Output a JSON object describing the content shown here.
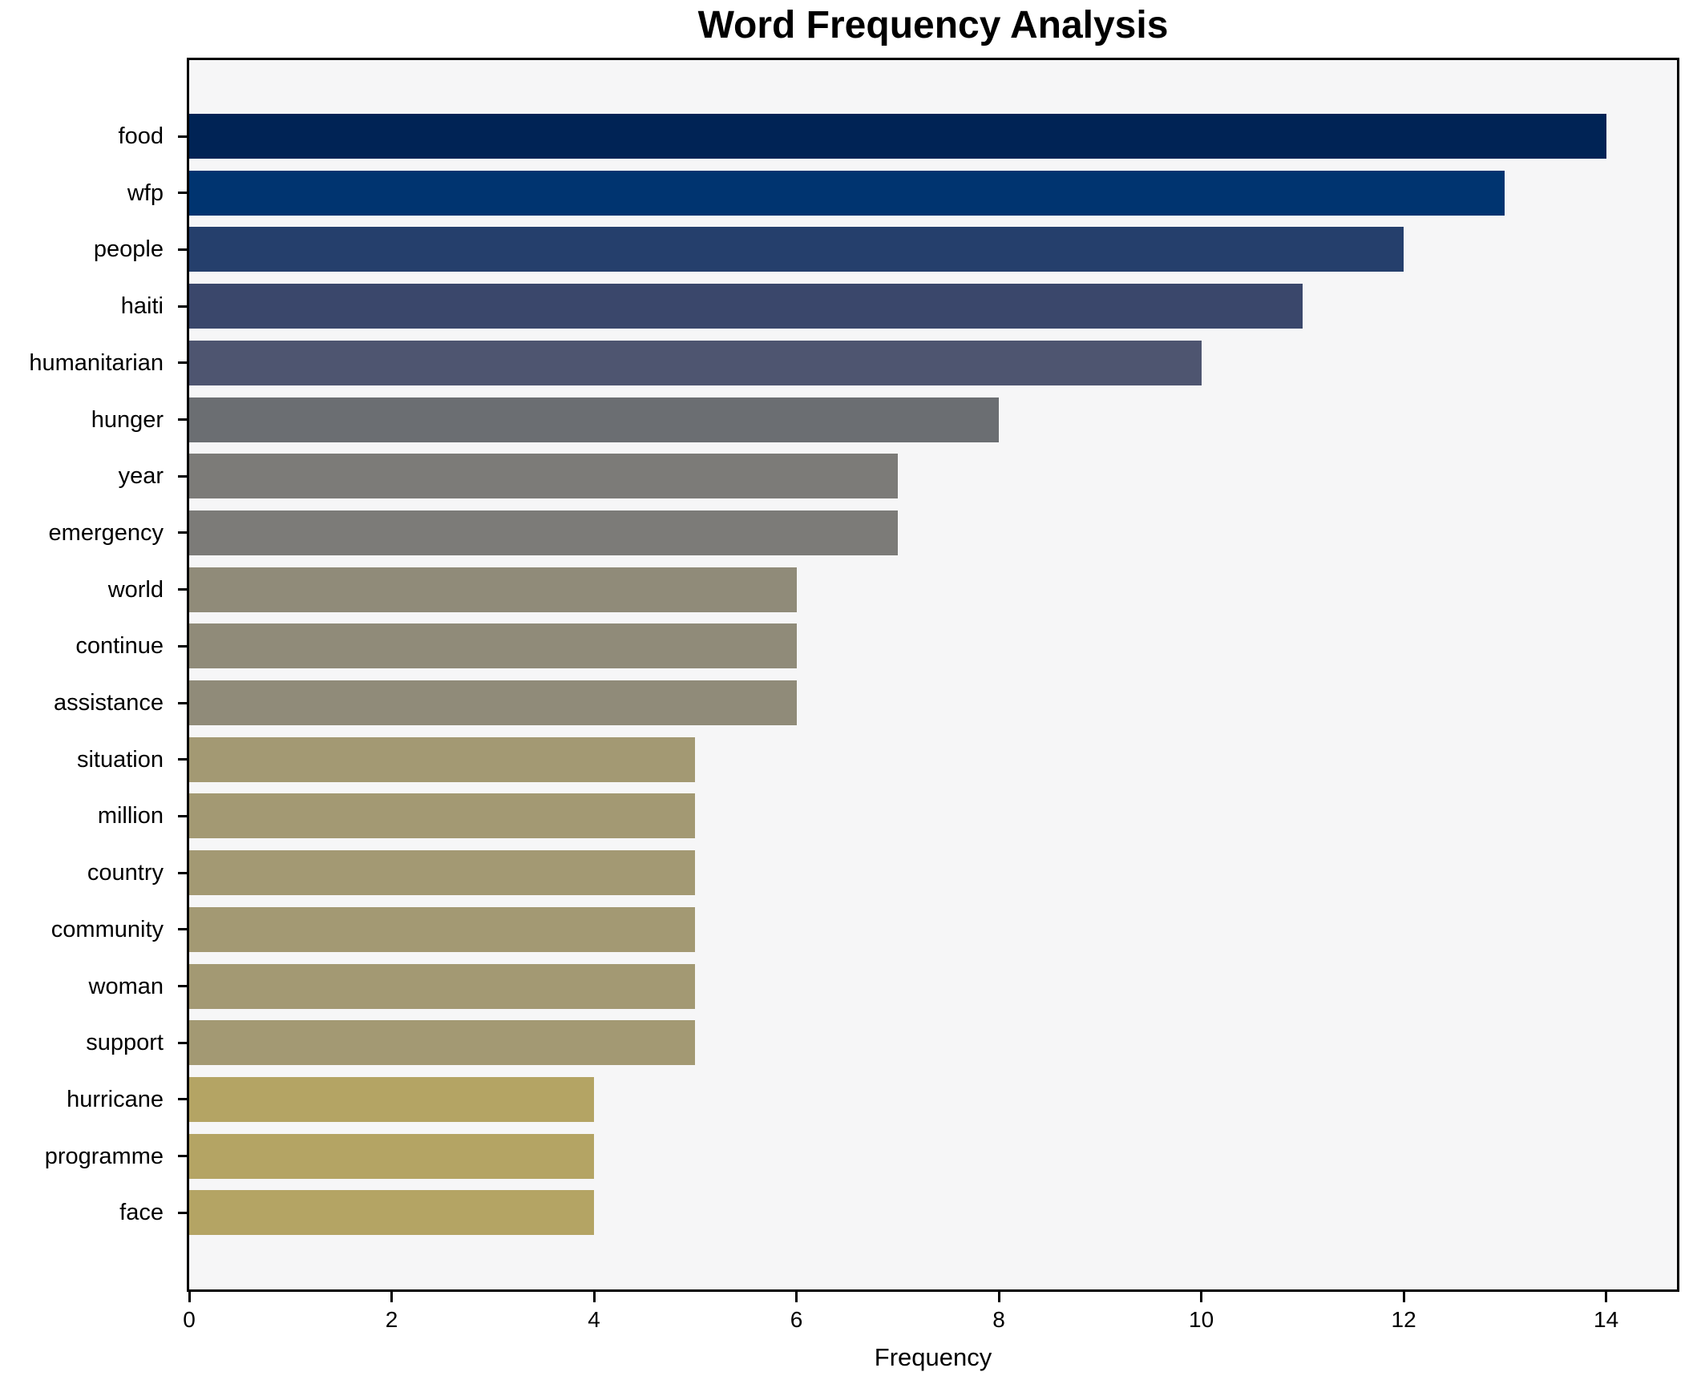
{
  "chart_data": {
    "type": "bar",
    "orientation": "horizontal",
    "title": "Word Frequency Analysis",
    "xlabel": "Frequency",
    "ylabel": "",
    "categories": [
      "food",
      "wfp",
      "people",
      "haiti",
      "humanitarian",
      "hunger",
      "year",
      "emergency",
      "world",
      "continue",
      "assistance",
      "situation",
      "million",
      "country",
      "community",
      "woman",
      "support",
      "hurricane",
      "programme",
      "face"
    ],
    "values": [
      14,
      13,
      12,
      11,
      10,
      8,
      7,
      7,
      6,
      6,
      6,
      5,
      5,
      5,
      5,
      5,
      5,
      4,
      4,
      4
    ],
    "bar_colors": [
      "#002355",
      "#003470",
      "#253f6c",
      "#3a476b",
      "#4e5570",
      "#6b6e72",
      "#7c7b78",
      "#7c7b78",
      "#908b79",
      "#908b79",
      "#908b79",
      "#a39973",
      "#a39973",
      "#a39973",
      "#a39973",
      "#a39973",
      "#a39973",
      "#b4a464",
      "#b4a464",
      "#b4a464"
    ],
    "x_ticks": [
      0,
      2,
      4,
      6,
      8,
      10,
      12,
      14
    ],
    "xlim": [
      0,
      14.7
    ],
    "grid": false,
    "legend_position": "none",
    "plot_background": "#f6f6f7",
    "figure_background": "#ffffff",
    "spine_color": "#000000",
    "text_color": "#000000"
  }
}
